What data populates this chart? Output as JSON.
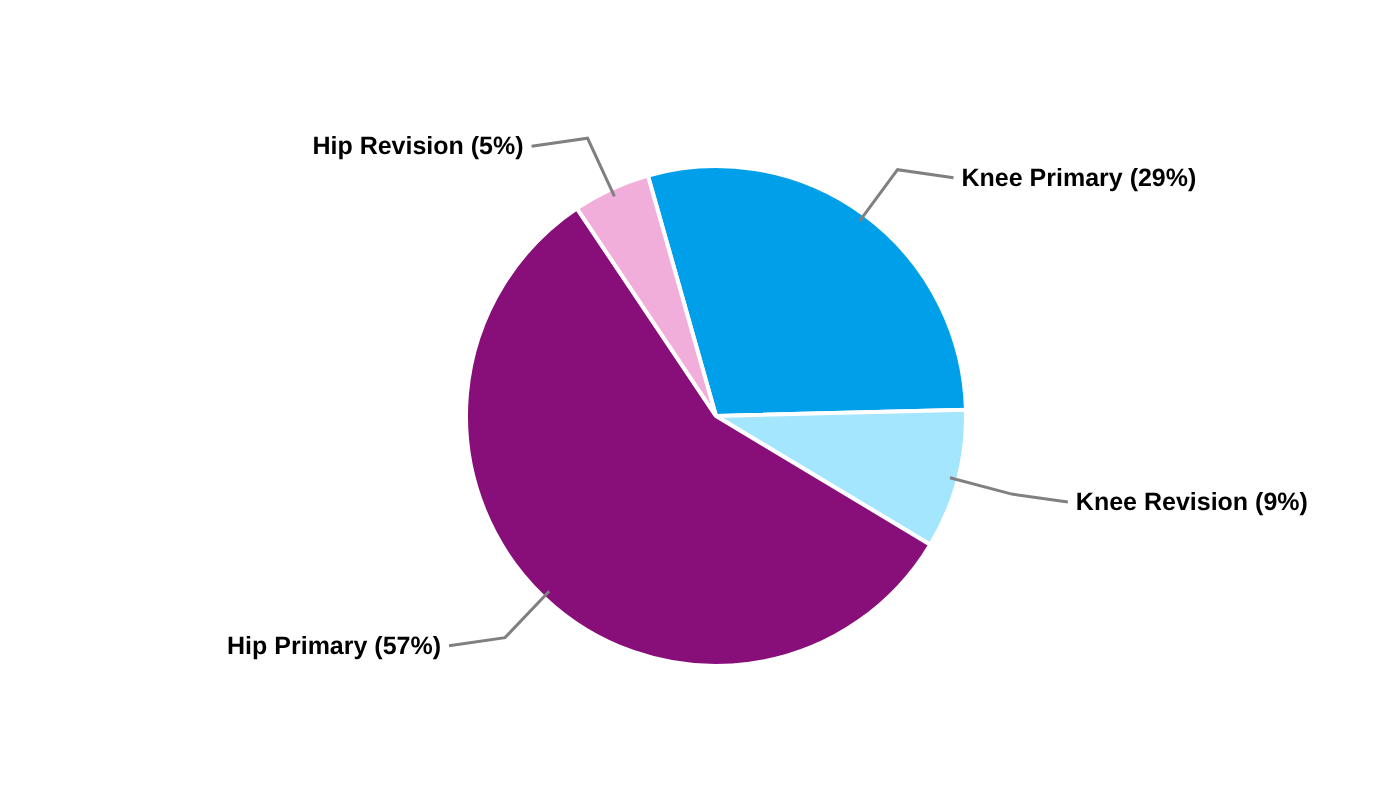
{
  "chart_data": {
    "type": "pie",
    "categories": [
      "Knee Primary",
      "Knee Revision",
      "Hip Primary",
      "Hip Revision"
    ],
    "values": [
      29,
      9,
      57,
      5
    ],
    "value_labels": [
      "(29%)",
      "(9%)",
      "(57%)",
      "(5%)"
    ],
    "colors": [
      "#009fea",
      "#a5e6ff",
      "#880e7a",
      "#f2aedb"
    ]
  }
}
